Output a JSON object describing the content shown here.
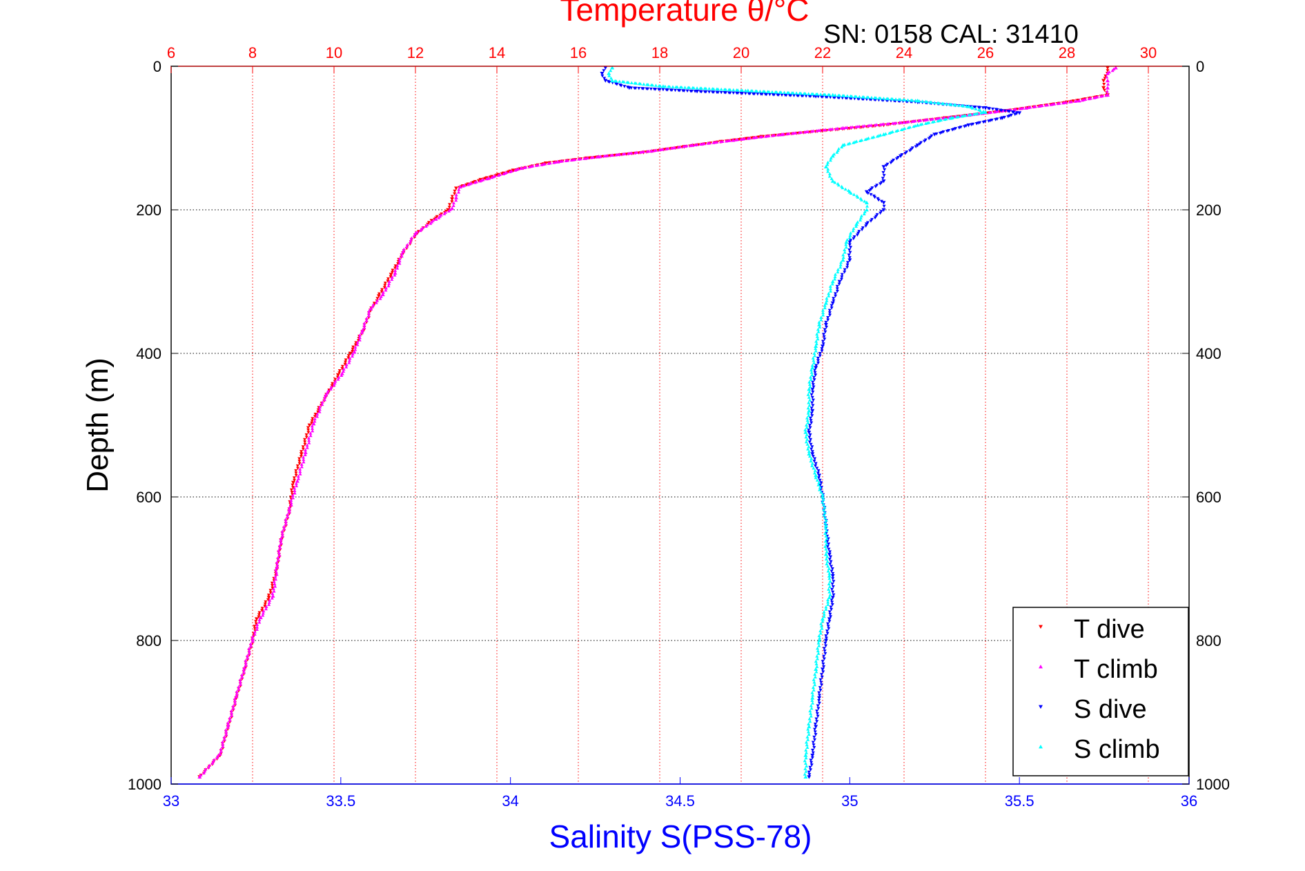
{
  "chart_data": {
    "type": "scatter",
    "title": "Temperature θ/°C",
    "subtitle": "SN: 0158  CAL: 31410",
    "xlabel_bottom": "Salinity S(PSS-78)",
    "xlabel_top": "Temperature θ/°C",
    "ylabel": "Depth (m)",
    "x_bottom": {
      "label": "Salinity S(PSS-78)",
      "lim": [
        33,
        36
      ],
      "ticks": [
        "33",
        "33.5",
        "34",
        "34.5",
        "35",
        "35.5",
        "36"
      ],
      "color": "#0000ff"
    },
    "x_top": {
      "label": "Temperature θ/°C",
      "lim": [
        6,
        31
      ],
      "ticks": [
        "6",
        "8",
        "10",
        "12",
        "14",
        "16",
        "18",
        "20",
        "22",
        "24",
        "26",
        "28",
        "30"
      ],
      "color": "#ff0000"
    },
    "y": {
      "label": "Depth (m)",
      "lim": [
        0,
        1000
      ],
      "reversed": true,
      "ticks": [
        "0",
        "200",
        "400",
        "600",
        "800",
        "1000"
      ]
    },
    "grid": true,
    "legend_position": "bottom-right",
    "series": [
      {
        "name": "T dive",
        "axis": "temperature",
        "color": "#ff0000",
        "marker": "triangle-down",
        "points": [
          [
            29.0,
            2
          ],
          [
            29.0,
            10
          ],
          [
            28.9,
            20
          ],
          [
            28.9,
            30
          ],
          [
            29.0,
            40
          ],
          [
            28.0,
            50
          ],
          [
            26.5,
            62
          ],
          [
            25.0,
            72
          ],
          [
            23.5,
            82
          ],
          [
            22.0,
            90
          ],
          [
            20.5,
            98
          ],
          [
            19.5,
            105
          ],
          [
            18.6,
            112
          ],
          [
            17.6,
            120
          ],
          [
            16.2,
            128
          ],
          [
            15.2,
            135
          ],
          [
            14.4,
            145
          ],
          [
            13.6,
            158
          ],
          [
            13.0,
            170
          ],
          [
            12.9,
            185
          ],
          [
            12.8,
            200
          ],
          [
            12.4,
            215
          ],
          [
            12.0,
            235
          ],
          [
            11.7,
            260
          ],
          [
            11.4,
            290
          ],
          [
            11.1,
            320
          ],
          [
            10.9,
            340
          ],
          [
            10.7,
            370
          ],
          [
            10.4,
            400
          ],
          [
            10.1,
            430
          ],
          [
            9.8,
            460
          ],
          [
            9.4,
            500
          ],
          [
            9.2,
            540
          ],
          [
            9.0,
            580
          ],
          [
            8.9,
            620
          ],
          [
            8.7,
            660
          ],
          [
            8.6,
            700
          ],
          [
            8.4,
            740
          ],
          [
            8.1,
            770
          ],
          [
            8.0,
            800
          ],
          [
            7.8,
            840
          ],
          [
            7.6,
            880
          ],
          [
            7.4,
            920
          ],
          [
            7.2,
            960
          ],
          [
            6.7,
            990
          ]
        ]
      },
      {
        "name": "T climb",
        "axis": "temperature",
        "color": "#ff00ff",
        "marker": "triangle-up",
        "points": [
          [
            29.2,
            2
          ],
          [
            29.0,
            10
          ],
          [
            29.0,
            20
          ],
          [
            29.0,
            30
          ],
          [
            29.0,
            40
          ],
          [
            28.3,
            48
          ],
          [
            27.0,
            58
          ],
          [
            25.6,
            68
          ],
          [
            24.0,
            78
          ],
          [
            22.5,
            86
          ],
          [
            21.0,
            95
          ],
          [
            19.8,
            103
          ],
          [
            18.8,
            110
          ],
          [
            17.8,
            118
          ],
          [
            16.5,
            126
          ],
          [
            15.5,
            133
          ],
          [
            14.6,
            142
          ],
          [
            13.8,
            156
          ],
          [
            13.1,
            168
          ],
          [
            13.0,
            183
          ],
          [
            12.9,
            198
          ],
          [
            12.5,
            213
          ],
          [
            12.0,
            233
          ],
          [
            11.7,
            258
          ],
          [
            11.5,
            288
          ],
          [
            11.2,
            318
          ],
          [
            10.9,
            338
          ],
          [
            10.7,
            368
          ],
          [
            10.5,
            398
          ],
          [
            10.2,
            428
          ],
          [
            9.8,
            458
          ],
          [
            9.5,
            498
          ],
          [
            9.3,
            538
          ],
          [
            9.1,
            578
          ],
          [
            8.9,
            618
          ],
          [
            8.7,
            658
          ],
          [
            8.6,
            698
          ],
          [
            8.5,
            738
          ],
          [
            8.2,
            768
          ],
          [
            8.0,
            798
          ],
          [
            7.8,
            838
          ],
          [
            7.6,
            878
          ],
          [
            7.4,
            918
          ],
          [
            7.2,
            958
          ],
          [
            6.7,
            990
          ]
        ]
      },
      {
        "name": "S dive",
        "axis": "salinity",
        "color": "#0000ff",
        "marker": "triangle-down",
        "points": [
          [
            34.28,
            2
          ],
          [
            34.27,
            10
          ],
          [
            34.28,
            20
          ],
          [
            34.35,
            30
          ],
          [
            34.55,
            35
          ],
          [
            34.9,
            42
          ],
          [
            35.2,
            50
          ],
          [
            35.4,
            58
          ],
          [
            35.5,
            65
          ],
          [
            35.45,
            72
          ],
          [
            35.35,
            82
          ],
          [
            35.25,
            95
          ],
          [
            35.2,
            110
          ],
          [
            35.15,
            125
          ],
          [
            35.1,
            140
          ],
          [
            35.1,
            160
          ],
          [
            35.05,
            175
          ],
          [
            35.1,
            190
          ],
          [
            35.1,
            200
          ],
          [
            35.05,
            220
          ],
          [
            35.0,
            245
          ],
          [
            35.0,
            270
          ],
          [
            34.97,
            300
          ],
          [
            34.95,
            330
          ],
          [
            34.93,
            360
          ],
          [
            34.92,
            390
          ],
          [
            34.9,
            420
          ],
          [
            34.89,
            450
          ],
          [
            34.89,
            480
          ],
          [
            34.88,
            510
          ],
          [
            34.89,
            540
          ],
          [
            34.91,
            570
          ],
          [
            34.92,
            600
          ],
          [
            34.93,
            640
          ],
          [
            34.94,
            680
          ],
          [
            34.95,
            710
          ],
          [
            34.95,
            740
          ],
          [
            34.94,
            770
          ],
          [
            34.93,
            800
          ],
          [
            34.92,
            840
          ],
          [
            34.91,
            880
          ],
          [
            34.9,
            920
          ],
          [
            34.89,
            960
          ],
          [
            34.88,
            990
          ]
        ]
      },
      {
        "name": "S climb",
        "axis": "salinity",
        "color": "#00ffff",
        "marker": "triangle-up",
        "points": [
          [
            34.3,
            2
          ],
          [
            34.29,
            10
          ],
          [
            34.3,
            20
          ],
          [
            34.45,
            28
          ],
          [
            34.7,
            34
          ],
          [
            34.95,
            40
          ],
          [
            35.2,
            48
          ],
          [
            35.35,
            56
          ],
          [
            35.4,
            64
          ],
          [
            35.3,
            72
          ],
          [
            35.2,
            82
          ],
          [
            35.1,
            95
          ],
          [
            34.98,
            110
          ],
          [
            34.95,
            125
          ],
          [
            34.93,
            140
          ],
          [
            34.95,
            160
          ],
          [
            35.0,
            175
          ],
          [
            35.05,
            190
          ],
          [
            35.05,
            200
          ],
          [
            35.02,
            220
          ],
          [
            34.99,
            245
          ],
          [
            34.98,
            270
          ],
          [
            34.95,
            300
          ],
          [
            34.93,
            330
          ],
          [
            34.91,
            360
          ],
          [
            34.9,
            390
          ],
          [
            34.89,
            420
          ],
          [
            34.88,
            450
          ],
          [
            34.88,
            480
          ],
          [
            34.87,
            510
          ],
          [
            34.88,
            540
          ],
          [
            34.9,
            570
          ],
          [
            34.92,
            600
          ],
          [
            34.93,
            640
          ],
          [
            34.93,
            680
          ],
          [
            34.94,
            710
          ],
          [
            34.94,
            740
          ],
          [
            34.92,
            770
          ],
          [
            34.91,
            800
          ],
          [
            34.9,
            840
          ],
          [
            34.89,
            880
          ],
          [
            34.88,
            920
          ],
          [
            34.87,
            960
          ],
          [
            34.87,
            990
          ]
        ]
      }
    ],
    "legend": [
      "T dive",
      "T climb",
      "S dive",
      "S climb"
    ]
  },
  "colors": {
    "temperature_axis": "#ff0000",
    "salinity_axis": "#0000ff",
    "frame": "#000000",
    "grid": "#000000"
  }
}
